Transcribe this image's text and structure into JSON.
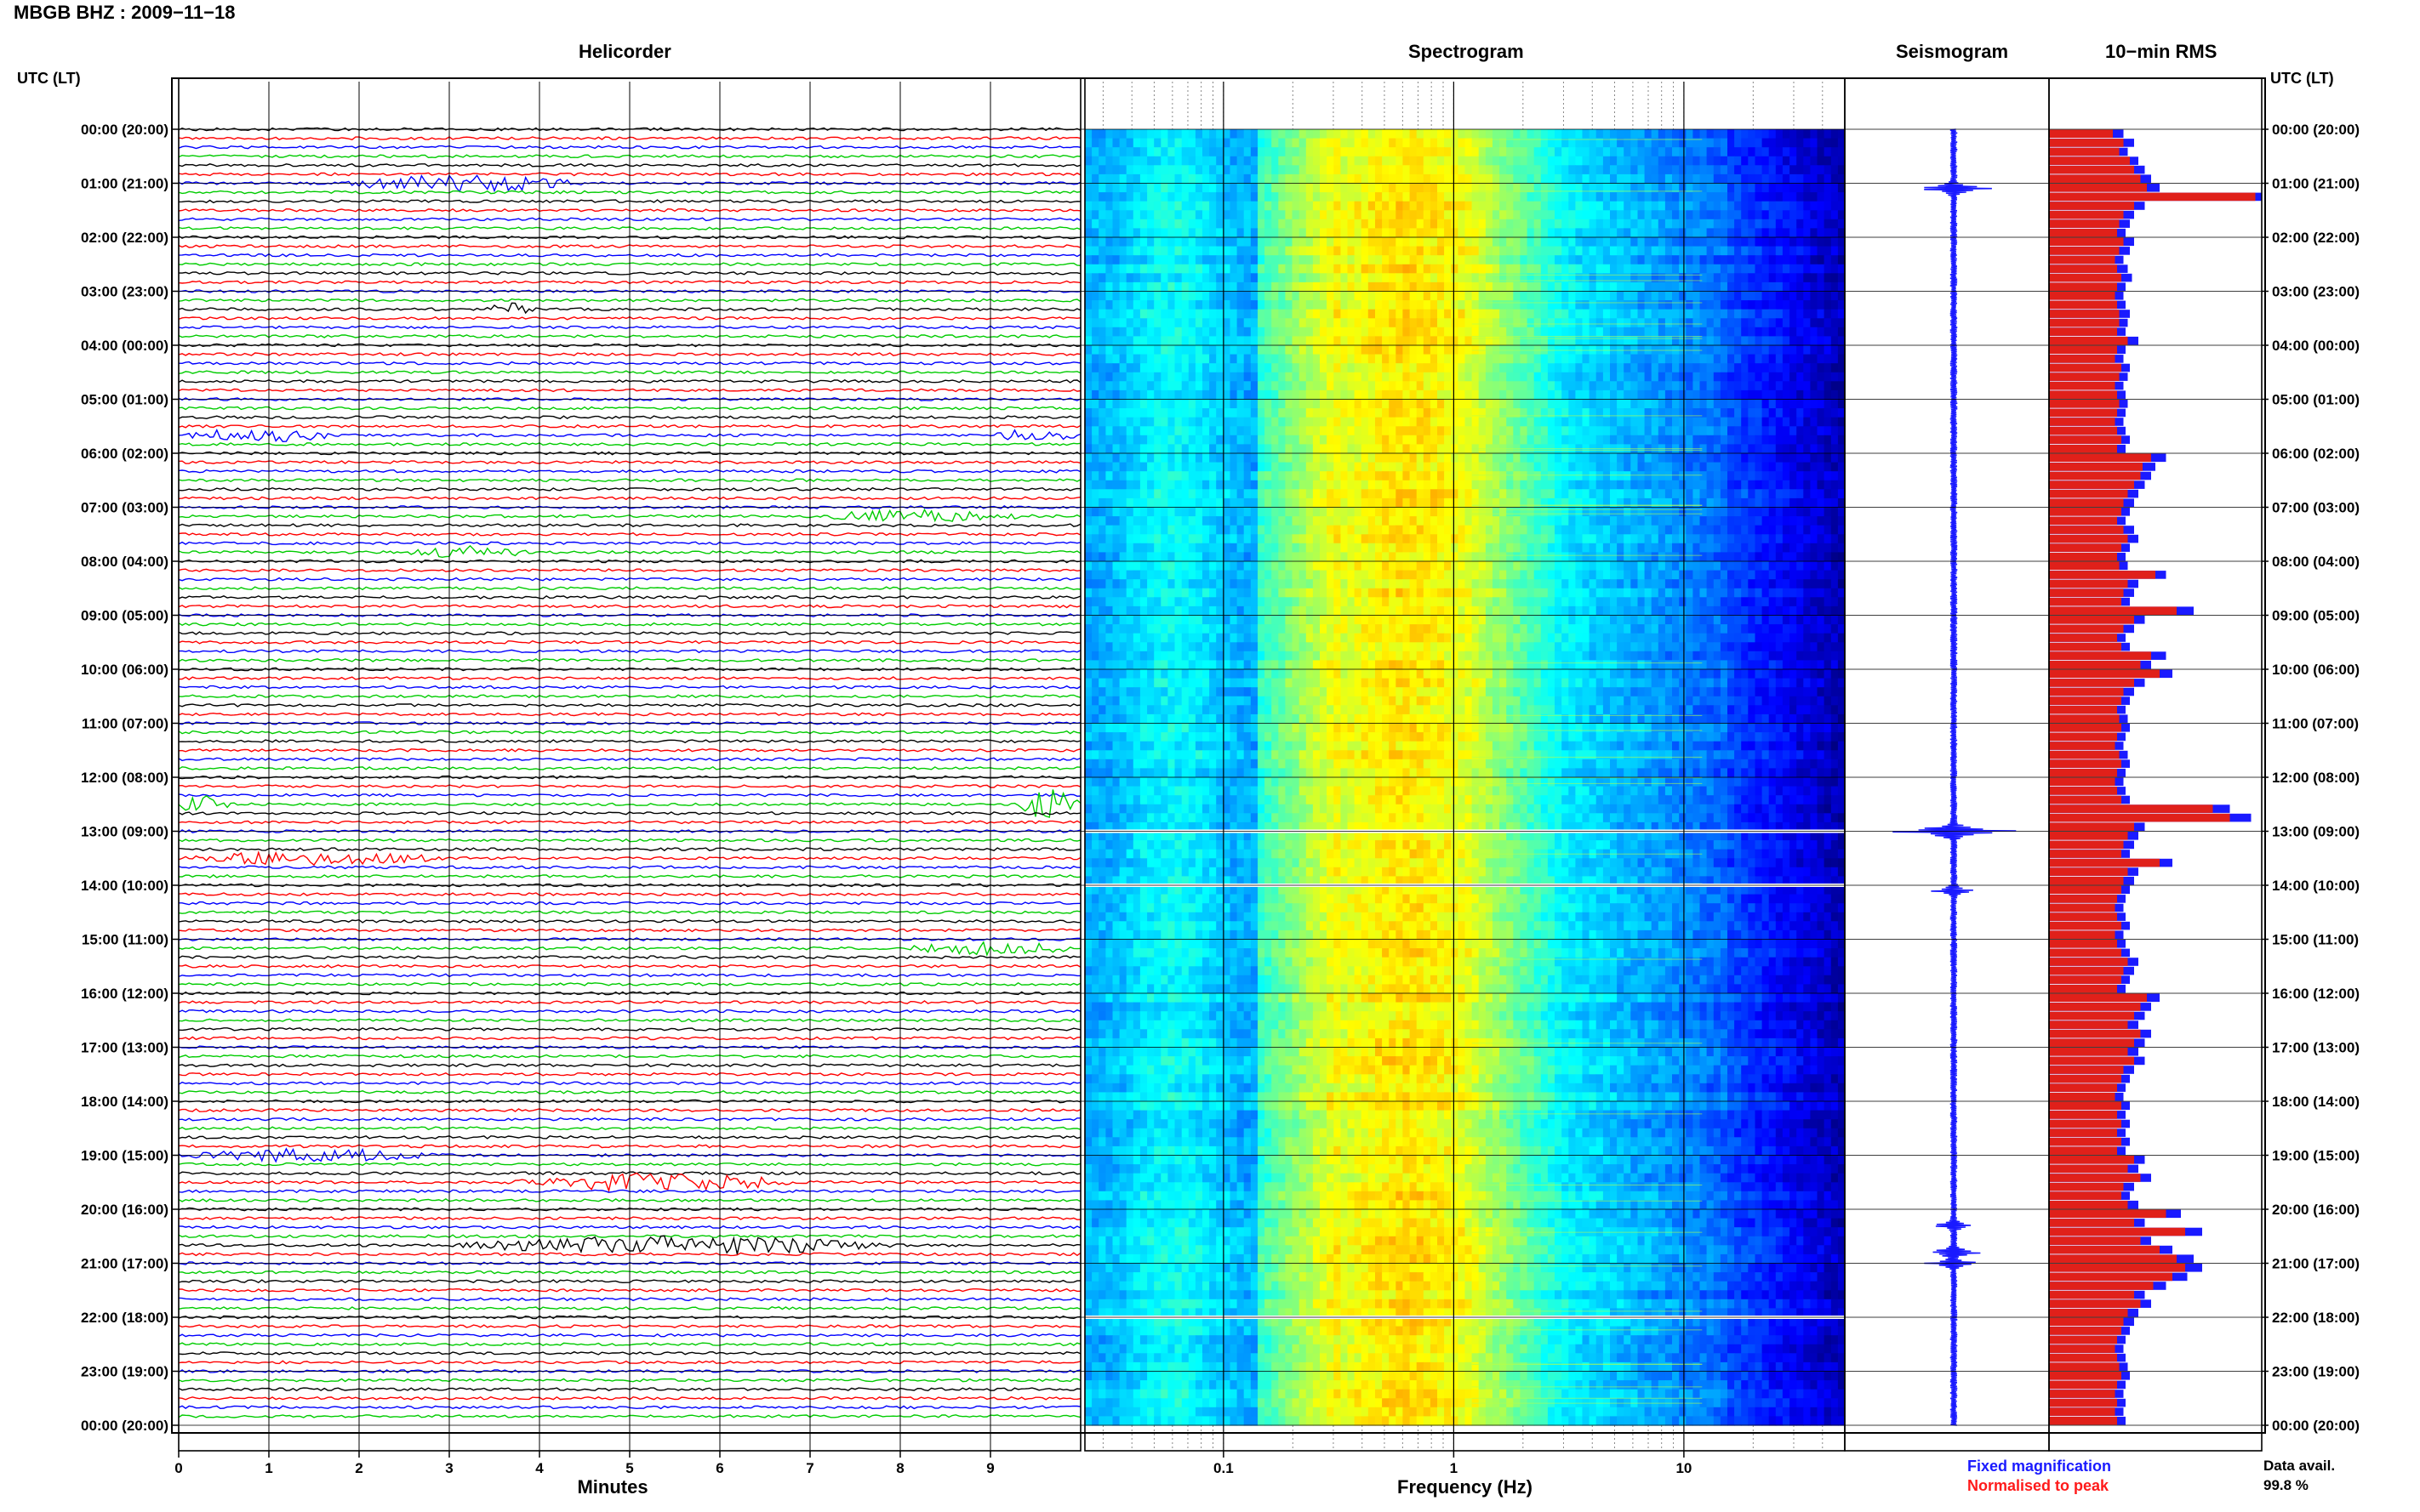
{
  "header": {
    "title": "MBGB BHZ : 2009−11−18",
    "utc_label_left": "UTC (LT)",
    "utc_label_right": "UTC (LT)"
  },
  "panels": {
    "helicorder": "Helicorder",
    "spectrogram": "Spectrogram",
    "seismogram": "Seismogram",
    "rms": "10−min RMS"
  },
  "legend": {
    "fixed": "Fixed magnification",
    "normalised": "Normalised to peak",
    "avail_label": "Data avail.",
    "avail_value": "99.8 %"
  },
  "colors": {
    "trace_cycle": [
      "#000000",
      "#ff0000",
      "#0000ff",
      "#00cc00"
    ],
    "rms_fixed": "#1a1aff",
    "rms_normalised": "#e0201a"
  },
  "chart_data": [
    {
      "type": "line",
      "name": "Helicorder",
      "xlabel": "Minutes",
      "xlim": [
        0,
        10
      ],
      "xticks": [
        "0",
        "1",
        "2",
        "3",
        "4",
        "5",
        "6",
        "7",
        "8",
        "9"
      ],
      "rows_per_hour": 6,
      "hour_labels": [
        "00:00 (20:00)",
        "01:00 (21:00)",
        "02:00 (22:00)",
        "03:00 (23:00)",
        "04:00 (00:00)",
        "05:00 (01:00)",
        "06:00 (02:00)",
        "07:00 (03:00)",
        "08:00 (04:00)",
        "09:00 (05:00)",
        "10:00 (06:00)",
        "11:00 (07:00)",
        "12:00 (08:00)",
        "13:00 (09:00)",
        "14:00 (10:00)",
        "15:00 (11:00)",
        "16:00 (12:00)",
        "17:00 (13:00)",
        "18:00 (14:00)",
        "19:00 (15:00)",
        "20:00 (16:00)",
        "21:00 (17:00)",
        "22:00 (18:00)",
        "23:00 (19:00)",
        "00:00 (20:00)"
      ],
      "events": [
        {
          "row": 6,
          "start_min": 1.8,
          "end_min": 4.5,
          "amp": 3
        },
        {
          "row": 20,
          "start_min": 3.4,
          "end_min": 4.0,
          "amp": 2
        },
        {
          "row": 34,
          "start_min": 0.0,
          "end_min": 1.8,
          "amp": 2
        },
        {
          "row": 34,
          "start_min": 9.0,
          "end_min": 10.0,
          "amp": 2
        },
        {
          "row": 43,
          "start_min": 7.0,
          "end_min": 9.5,
          "amp": 2
        },
        {
          "row": 47,
          "start_min": 2.5,
          "end_min": 4.0,
          "amp": 2
        },
        {
          "row": 75,
          "start_min": 0.0,
          "end_min": 0.6,
          "amp": 4
        },
        {
          "row": 75,
          "start_min": 9.3,
          "end_min": 10.0,
          "amp": 5
        },
        {
          "row": 81,
          "start_min": 0.0,
          "end_min": 3.0,
          "amp": 2
        },
        {
          "row": 91,
          "start_min": 8.0,
          "end_min": 10.0,
          "amp": 2
        },
        {
          "row": 114,
          "start_min": 0.0,
          "end_min": 3.0,
          "amp": 2
        },
        {
          "row": 117,
          "start_min": 3.5,
          "end_min": 7.0,
          "amp": 3
        },
        {
          "row": 124,
          "start_min": 3.0,
          "end_min": 8.0,
          "amp": 3
        }
      ]
    },
    {
      "type": "heatmap",
      "name": "Spectrogram",
      "xlabel": "Frequency (Hz)",
      "xscale": "log",
      "xlim": [
        0.025,
        50
      ],
      "xticks": [
        0.1,
        1,
        10
      ],
      "xtick_labels": [
        "0.1",
        "1",
        "10"
      ],
      "colormap": "jet",
      "gap_hours": [
        13.0,
        14.0,
        22.0
      ]
    },
    {
      "type": "line",
      "name": "Seismogram",
      "orientation": "vertical",
      "ylim": [
        0,
        24
      ],
      "peaks": [
        {
          "hour": 1.1,
          "amp": 0.45
        },
        {
          "hour": 13.0,
          "amp": 0.8
        },
        {
          "hour": 14.1,
          "amp": 0.3
        },
        {
          "hour": 20.3,
          "amp": 0.25
        },
        {
          "hour": 20.8,
          "amp": 0.35
        },
        {
          "hour": 21.0,
          "amp": 0.3
        }
      ]
    },
    {
      "type": "bar",
      "name": "10-min RMS",
      "orientation": "horizontal",
      "ylim": [
        0,
        24
      ],
      "series": [
        {
          "name": "Fixed magnification",
          "values": [
            0.35,
            0.4,
            0.37,
            0.42,
            0.45,
            0.48,
            0.52,
            1.0,
            0.45,
            0.4,
            0.38,
            0.36,
            0.4,
            0.38,
            0.35,
            0.37,
            0.39,
            0.36,
            0.35,
            0.36,
            0.38,
            0.37,
            0.36,
            0.42,
            0.36,
            0.35,
            0.38,
            0.37,
            0.35,
            0.36,
            0.37,
            0.36,
            0.35,
            0.36,
            0.38,
            0.36,
            0.55,
            0.5,
            0.48,
            0.45,
            0.42,
            0.4,
            0.38,
            0.36,
            0.4,
            0.42,
            0.38,
            0.36,
            0.37,
            0.55,
            0.42,
            0.4,
            0.38,
            0.68,
            0.45,
            0.4,
            0.36,
            0.38,
            0.55,
            0.48,
            0.58,
            0.45,
            0.4,
            0.38,
            0.36,
            0.37,
            0.38,
            0.36,
            0.35,
            0.37,
            0.38,
            0.36,
            0.35,
            0.36,
            0.38,
            0.85,
            0.95,
            0.45,
            0.42,
            0.4,
            0.38,
            0.58,
            0.42,
            0.4,
            0.38,
            0.36,
            0.35,
            0.36,
            0.38,
            0.35,
            0.36,
            0.38,
            0.42,
            0.4,
            0.38,
            0.36,
            0.52,
            0.48,
            0.45,
            0.42,
            0.48,
            0.45,
            0.42,
            0.45,
            0.4,
            0.38,
            0.36,
            0.35,
            0.38,
            0.36,
            0.38,
            0.36,
            0.38,
            0.36,
            0.45,
            0.42,
            0.48,
            0.4,
            0.38,
            0.42,
            0.62,
            0.45,
            0.72,
            0.48,
            0.58,
            0.68,
            0.72,
            0.65,
            0.55,
            0.45,
            0.48,
            0.42,
            0.4,
            0.38,
            0.36,
            0.35,
            0.36,
            0.37,
            0.38,
            0.36,
            0.35,
            0.36,
            0.35,
            0.36
          ]
        },
        {
          "name": "Normalised to peak",
          "values": [
            0.3,
            0.35,
            0.33,
            0.38,
            0.4,
            0.43,
            0.46,
            0.97,
            0.4,
            0.35,
            0.33,
            0.32,
            0.35,
            0.33,
            0.31,
            0.32,
            0.34,
            0.32,
            0.31,
            0.32,
            0.33,
            0.33,
            0.32,
            0.37,
            0.32,
            0.31,
            0.34,
            0.33,
            0.31,
            0.32,
            0.33,
            0.32,
            0.31,
            0.32,
            0.34,
            0.32,
            0.48,
            0.44,
            0.43,
            0.4,
            0.37,
            0.35,
            0.34,
            0.32,
            0.35,
            0.37,
            0.34,
            0.32,
            0.33,
            0.5,
            0.37,
            0.35,
            0.34,
            0.6,
            0.4,
            0.35,
            0.32,
            0.34,
            0.48,
            0.43,
            0.52,
            0.4,
            0.35,
            0.34,
            0.32,
            0.33,
            0.34,
            0.32,
            0.31,
            0.33,
            0.34,
            0.32,
            0.31,
            0.32,
            0.34,
            0.77,
            0.85,
            0.4,
            0.37,
            0.35,
            0.34,
            0.52,
            0.37,
            0.35,
            0.34,
            0.32,
            0.31,
            0.32,
            0.34,
            0.31,
            0.32,
            0.34,
            0.37,
            0.35,
            0.34,
            0.32,
            0.46,
            0.43,
            0.4,
            0.37,
            0.43,
            0.4,
            0.37,
            0.4,
            0.35,
            0.34,
            0.32,
            0.31,
            0.34,
            0.32,
            0.34,
            0.32,
            0.34,
            0.32,
            0.4,
            0.37,
            0.43,
            0.35,
            0.34,
            0.37,
            0.55,
            0.4,
            0.64,
            0.43,
            0.52,
            0.6,
            0.64,
            0.58,
            0.49,
            0.4,
            0.43,
            0.37,
            0.35,
            0.34,
            0.32,
            0.31,
            0.32,
            0.33,
            0.34,
            0.32,
            0.31,
            0.32,
            0.31,
            0.32
          ]
        }
      ]
    }
  ]
}
